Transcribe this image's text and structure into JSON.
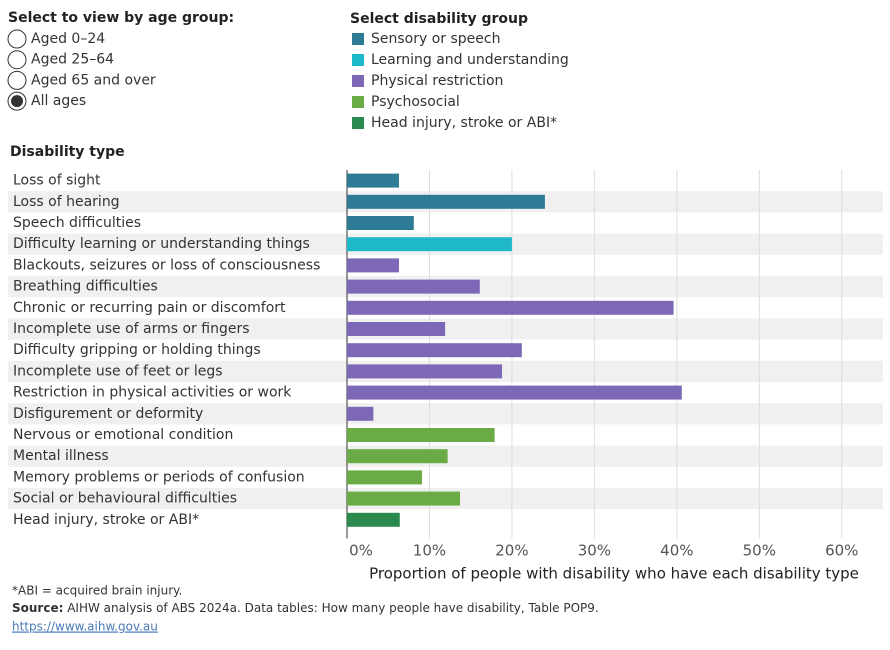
{
  "age_filter": {
    "title": "Select to view by age group:",
    "options": [
      "Aged 0–24",
      "Aged 25–64",
      "Aged 65 and over",
      "All ages"
    ],
    "selected": "All ages"
  },
  "chart_data": {
    "type": "bar",
    "orientation": "horizontal",
    "legend_title": "Select disability group",
    "y_label": "Disability type",
    "x_label": "Proportion of people with disability who have each disability type",
    "categories": [
      "Loss of sight",
      "Loss of hearing",
      "Speech difficulties",
      "Difficulty learning or understanding things",
      "Blackouts, seizures or loss of consciousness",
      "Breathing difficulties",
      "Chronic or recurring pain or discomfort",
      "Incomplete use of arms or fingers",
      "Difficulty gripping or holding things",
      "Incomplete use of feet or legs",
      "Restriction in physical activities or work",
      "Disfigurement or deformity",
      "Nervous or emotional condition",
      "Mental illness",
      "Memory problems or periods of confusion",
      "Social or behavioural difficulties",
      "Head injury, stroke or ABI*"
    ],
    "series": [
      {
        "name": "Sensory or speech",
        "color": "#2e7b96",
        "values": [
          6.3,
          24.0,
          8.1,
          null,
          null,
          null,
          null,
          null,
          null,
          null,
          null,
          null,
          null,
          null,
          null,
          null,
          null
        ]
      },
      {
        "name": "Learning and understanding",
        "color": "#1fb8c9",
        "values": [
          null,
          null,
          null,
          20.0,
          null,
          null,
          null,
          null,
          null,
          null,
          null,
          null,
          null,
          null,
          null,
          null,
          null
        ]
      },
      {
        "name": "Physical restriction",
        "color": "#7c68b6",
        "values": [
          null,
          null,
          null,
          null,
          6.3,
          16.1,
          39.6,
          11.9,
          21.2,
          18.8,
          40.6,
          3.2,
          null,
          null,
          null,
          null,
          null
        ]
      },
      {
        "name": "Psychosocial",
        "color": "#6aab46",
        "values": [
          null,
          null,
          null,
          null,
          null,
          null,
          null,
          null,
          null,
          null,
          null,
          null,
          17.9,
          12.2,
          9.1,
          13.7,
          null
        ]
      },
      {
        "name": "Head injury, stroke or ABI*",
        "color": "#2a8a4e",
        "values": [
          null,
          null,
          null,
          null,
          null,
          null,
          null,
          null,
          null,
          null,
          null,
          null,
          null,
          null,
          null,
          null,
          6.4
        ]
      }
    ],
    "xlim": [
      0,
      65
    ],
    "xticks": [
      {
        "value": 0,
        "label": "0%"
      },
      {
        "value": 10,
        "label": "10%"
      },
      {
        "value": 20,
        "label": "20%"
      },
      {
        "value": 30,
        "label": "30%"
      },
      {
        "value": 40,
        "label": "40%"
      },
      {
        "value": 50,
        "label": "50%"
      },
      {
        "value": 60,
        "label": "60%"
      }
    ],
    "grid": true
  },
  "footer": {
    "note": "*ABI = acquired brain injury.",
    "source_label": "Source:",
    "source_text": " AIHW analysis of ABS 2024a. Data tables: How many people have disability, Table POP9.",
    "link": "https://www.aihw.gov.au"
  }
}
